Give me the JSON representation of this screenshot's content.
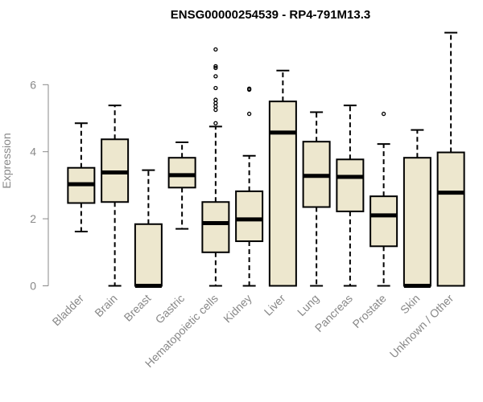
{
  "chart_data": {
    "type": "boxplot",
    "title": "ENSG00000254539 - RP4-791M13.3",
    "xlabel": "",
    "ylabel": "Expression",
    "ylim": [
      0,
      7.6
    ],
    "yticks": [
      0,
      2,
      4,
      6
    ],
    "box_fill": "#EDE7CE",
    "grid": false,
    "categories": [
      "Bladder",
      "Brain",
      "Breast",
      "Gastric",
      "Hematopoietic cells",
      "Kidney",
      "Liver",
      "Lung",
      "Pancreas",
      "Prostate",
      "Skin",
      "Unknown / Other"
    ],
    "boxes": [
      {
        "name": "Bladder",
        "whisker_low": 1.62,
        "q1": 2.47,
        "median": 3.03,
        "q3": 3.52,
        "whisker_high": 4.85,
        "outliers": []
      },
      {
        "name": "Brain",
        "whisker_low": 0.0,
        "q1": 2.5,
        "median": 3.38,
        "q3": 4.37,
        "whisker_high": 5.38,
        "outliers": []
      },
      {
        "name": "Breast",
        "whisker_low": 0.0,
        "q1": 0.0,
        "median": 0.0,
        "q3": 1.84,
        "whisker_high": 3.45,
        "outliers": []
      },
      {
        "name": "Gastric",
        "whisker_low": 1.7,
        "q1": 2.93,
        "median": 3.3,
        "q3": 3.82,
        "whisker_high": 4.28,
        "outliers": []
      },
      {
        "name": "Hematopoietic cells",
        "whisker_low": 0.0,
        "q1": 1.0,
        "median": 1.87,
        "q3": 2.5,
        "whisker_high": 4.75,
        "outliers": [
          4.85,
          5.25,
          5.35,
          5.45,
          5.55,
          5.9,
          6.25,
          6.5,
          6.55,
          7.05
        ]
      },
      {
        "name": "Kidney",
        "whisker_low": 0.0,
        "q1": 1.33,
        "median": 1.98,
        "q3": 2.82,
        "whisker_high": 3.88,
        "outliers": [
          5.13,
          5.85,
          5.88
        ]
      },
      {
        "name": "Liver",
        "whisker_low": 0.0,
        "q1": 0.0,
        "median": 4.57,
        "q3": 5.5,
        "whisker_high": 6.42,
        "outliers": []
      },
      {
        "name": "Lung",
        "whisker_low": 0.0,
        "q1": 2.35,
        "median": 3.28,
        "q3": 4.3,
        "whisker_high": 5.18,
        "outliers": []
      },
      {
        "name": "Pancreas",
        "whisker_low": 0.0,
        "q1": 2.22,
        "median": 3.25,
        "q3": 3.77,
        "whisker_high": 5.38,
        "outliers": []
      },
      {
        "name": "Prostate",
        "whisker_low": 0.0,
        "q1": 1.18,
        "median": 2.1,
        "q3": 2.67,
        "whisker_high": 4.23,
        "outliers": [
          5.13
        ]
      },
      {
        "name": "Skin",
        "whisker_low": 0.0,
        "q1": 0.0,
        "median": 0.0,
        "q3": 3.82,
        "whisker_high": 4.65,
        "outliers": []
      },
      {
        "name": "Unknown / Other",
        "whisker_low": 0.0,
        "q1": 0.0,
        "median": 2.78,
        "q3": 3.98,
        "whisker_high": 7.55,
        "outliers": []
      }
    ]
  }
}
